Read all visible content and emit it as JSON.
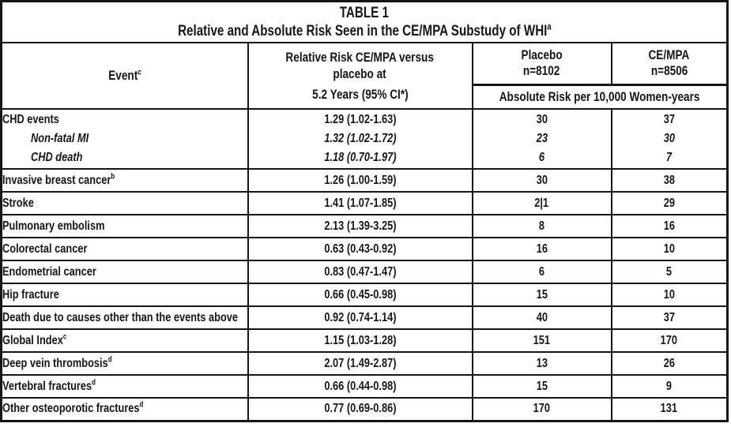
{
  "title": {
    "table_label": "TABLE 1",
    "subtitle": "Relative and Absolute Risk Seen in the CE/MPA Substudy of WHI",
    "subtitle_sup": "a"
  },
  "header": {
    "event_label": "Event",
    "event_sup": "c",
    "rr_line1": "Relative Risk CE/MPA versus",
    "rr_line2": "placebo at",
    "rr_line3": "5.2 Years (95% CI*)",
    "placebo_name": "Placebo",
    "placebo_n": "n=8102",
    "cempa_name": "CE/MPA",
    "cempa_n": "n=8506",
    "absolute_risk_label": "Absolute Risk per 10,000 Women-years"
  },
  "chd_group": {
    "rows": [
      {
        "event": "CHD events",
        "rr": "1.29 (1.02-1.63)",
        "placebo": "30",
        "cempa": "37"
      },
      {
        "event": "Non-fatal MI",
        "rr": "1.32 (1.02-1.72)",
        "placebo": "23",
        "cempa": "30"
      },
      {
        "event": "CHD death",
        "rr": "1.18 (0.70-1.97)",
        "placebo": "6",
        "cempa": "7"
      }
    ]
  },
  "rows": [
    {
      "event": "Invasive breast cancer",
      "sup": "b",
      "rr": "1.26 (1.00-1.59)",
      "placebo": "30",
      "cempa": "38"
    },
    {
      "event": "Stroke",
      "sup": "",
      "rr": "1.41 (1.07-1.85)",
      "placebo": "2|1",
      "cempa": "29"
    },
    {
      "event": "Pulmonary embolism",
      "sup": "",
      "rr": "2.13 (1.39-3.25)",
      "placebo": "8",
      "cempa": "16"
    },
    {
      "event": "Colorectal cancer",
      "sup": "",
      "rr": "0.63 (0.43-0.92)",
      "placebo": "16",
      "cempa": "10"
    },
    {
      "event": "Endometrial cancer",
      "sup": "",
      "rr": "0.83 (0.47-1.47)",
      "placebo": "6",
      "cempa": "5"
    },
    {
      "event": "Hip fracture",
      "sup": "",
      "rr": "0.66 (0.45-0.98)",
      "placebo": "15",
      "cempa": "10"
    },
    {
      "event": "Death due to causes other than the events above",
      "sup": "",
      "rr": "0.92 (0.74-1.14)",
      "placebo": "40",
      "cempa": "37"
    },
    {
      "event": "Global Index",
      "sup": "c",
      "rr": "1.15 (1.03-1.28)",
      "placebo": "151",
      "cempa": "170"
    },
    {
      "event": "Deep vein thrombosis",
      "sup": "d",
      "rr": "2.07 (1.49-2.87)",
      "placebo": "13",
      "cempa": "26"
    },
    {
      "event": "Vertebral fractures",
      "sup": "d",
      "rr": "0.66 (0.44-0.98)",
      "placebo": "15",
      "cempa": "9"
    },
    {
      "event": "Other osteoporotic fractures",
      "sup": "d",
      "rr": "0.77 (0.69-0.86)",
      "placebo": "170",
      "cempa": "131"
    }
  ]
}
